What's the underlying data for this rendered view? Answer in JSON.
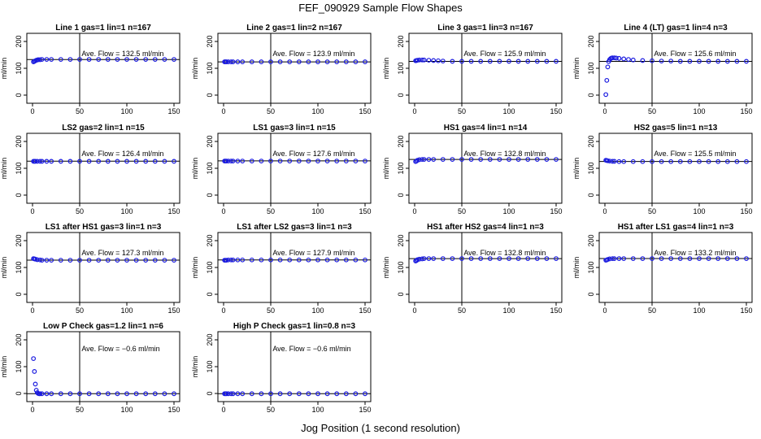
{
  "figure": {
    "title": "FEF_090929  Sample Flow Shapes",
    "xlabel": "Jog Position (1 second resolution)"
  },
  "colors": {
    "points": "#1a1adf",
    "axes": "#000000",
    "background": "#ffffff"
  },
  "chart_data": [
    {
      "type": "scatter",
      "title": "Line 1 gas=1 lin=1 n=167",
      "ylabel": "ml/min",
      "xlim": [
        0,
        150
      ],
      "ylim": [
        0,
        200
      ],
      "xticks": [
        0,
        50,
        100,
        150
      ],
      "yticks": [
        0,
        100,
        200
      ],
      "annotation": "Ave. Flow =  132.5  ml/min",
      "mean": 132.5,
      "series": [
        {
          "name": "flow",
          "x": [
            1,
            2,
            3,
            4,
            5,
            6,
            8,
            10,
            15,
            20,
            30,
            40,
            50,
            60,
            70,
            80,
            90,
            100,
            110,
            120,
            130,
            140,
            150
          ],
          "y": [
            124,
            126,
            128,
            130,
            131,
            132,
            132,
            133,
            133,
            133,
            133,
            133,
            133,
            133,
            133,
            133,
            133,
            133,
            133,
            133,
            133,
            133,
            133
          ]
        }
      ]
    },
    {
      "type": "scatter",
      "title": "Line 2 gas=1 lin=2 n=167",
      "ylabel": "ml/min",
      "xlim": [
        0,
        150
      ],
      "ylim": [
        0,
        200
      ],
      "xticks": [
        0,
        50,
        100,
        150
      ],
      "yticks": [
        0,
        100,
        200
      ],
      "annotation": "Ave. Flow =  123.9  ml/min",
      "mean": 123.9,
      "series": [
        {
          "name": "flow",
          "x": [
            1,
            2,
            3,
            5,
            8,
            10,
            15,
            20,
            30,
            40,
            50,
            60,
            70,
            80,
            90,
            100,
            110,
            120,
            130,
            140,
            150
          ],
          "y": [
            124,
            124,
            124,
            124,
            124,
            124,
            124,
            124,
            124,
            124,
            124,
            124,
            124,
            124,
            124,
            124,
            124,
            124,
            124,
            124,
            124
          ]
        }
      ]
    },
    {
      "type": "scatter",
      "title": "Line 3 gas=1 lin=3 n=167",
      "ylabel": "ml/min",
      "xlim": [
        0,
        150
      ],
      "ylim": [
        0,
        200
      ],
      "xticks": [
        0,
        50,
        100,
        150
      ],
      "yticks": [
        0,
        100,
        200
      ],
      "annotation": "Ave. Flow =  125.9  ml/min",
      "mean": 125.9,
      "series": [
        {
          "name": "flow",
          "x": [
            1,
            2,
            3,
            5,
            8,
            10,
            15,
            20,
            25,
            30,
            40,
            50,
            60,
            70,
            80,
            90,
            100,
            110,
            120,
            130,
            140,
            150
          ],
          "y": [
            128,
            129,
            130,
            131,
            131,
            131,
            130,
            129,
            128,
            127,
            126,
            126,
            126,
            126,
            126,
            126,
            126,
            126,
            126,
            126,
            126,
            126
          ]
        }
      ]
    },
    {
      "type": "scatter",
      "title": "Line 4 (LT) gas=1 lin=4 n=3",
      "ylabel": "ml/min",
      "xlim": [
        0,
        150
      ],
      "ylim": [
        0,
        200
      ],
      "xticks": [
        0,
        50,
        100,
        150
      ],
      "yticks": [
        0,
        100,
        200
      ],
      "annotation": "Ave. Flow =  125.6  ml/min",
      "mean": 125.6,
      "series": [
        {
          "name": "flow",
          "x": [
            1,
            2,
            3,
            4,
            5,
            6,
            7,
            8,
            10,
            12,
            15,
            20,
            25,
            30,
            40,
            50,
            60,
            70,
            80,
            90,
            100,
            110,
            120,
            130,
            140,
            150
          ],
          "y": [
            2,
            55,
            105,
            125,
            132,
            136,
            138,
            139,
            139,
            138,
            137,
            135,
            133,
            131,
            129,
            128,
            127,
            127,
            126,
            126,
            126,
            126,
            126,
            126,
            126,
            126
          ]
        }
      ]
    },
    {
      "type": "scatter",
      "title": "LS2 gas=2 lin=1 n=15",
      "ylabel": "ml/min",
      "xlim": [
        0,
        150
      ],
      "ylim": [
        0,
        200
      ],
      "xticks": [
        0,
        50,
        100,
        150
      ],
      "yticks": [
        0,
        100,
        200
      ],
      "annotation": "Ave. Flow =  126.4  ml/min",
      "mean": 126.4,
      "series": [
        {
          "name": "flow",
          "x": [
            1,
            2,
            3,
            5,
            8,
            10,
            15,
            20,
            30,
            40,
            50,
            60,
            70,
            80,
            90,
            100,
            110,
            120,
            130,
            140,
            150
          ],
          "y": [
            126,
            126,
            126,
            126,
            126,
            126,
            126,
            126,
            126,
            126,
            126,
            126,
            126,
            126,
            126,
            126,
            126,
            126,
            126,
            126,
            126
          ]
        }
      ]
    },
    {
      "type": "scatter",
      "title": "LS1 gas=3 lin=1 n=15",
      "ylabel": "ml/min",
      "xlim": [
        0,
        150
      ],
      "ylim": [
        0,
        200
      ],
      "xticks": [
        0,
        50,
        100,
        150
      ],
      "yticks": [
        0,
        100,
        200
      ],
      "annotation": "Ave. Flow =  127.6  ml/min",
      "mean": 127.6,
      "series": [
        {
          "name": "flow",
          "x": [
            1,
            2,
            3,
            5,
            8,
            10,
            15,
            20,
            30,
            40,
            50,
            60,
            70,
            80,
            90,
            100,
            110,
            120,
            130,
            140,
            150
          ],
          "y": [
            127,
            127,
            127,
            127,
            127,
            127,
            127,
            127,
            127,
            127,
            127,
            127,
            127,
            127,
            127,
            127,
            127,
            127,
            127,
            127,
            127
          ]
        }
      ]
    },
    {
      "type": "scatter",
      "title": "HS1 gas=4 lin=1 n=14",
      "ylabel": "ml/min",
      "xlim": [
        0,
        150
      ],
      "ylim": [
        0,
        200
      ],
      "xticks": [
        0,
        50,
        100,
        150
      ],
      "yticks": [
        0,
        100,
        200
      ],
      "annotation": "Ave. Flow =  132.8  ml/min",
      "mean": 132.8,
      "series": [
        {
          "name": "flow",
          "x": [
            1,
            2,
            3,
            5,
            8,
            10,
            15,
            20,
            30,
            40,
            50,
            60,
            70,
            80,
            90,
            100,
            110,
            120,
            130,
            140,
            150
          ],
          "y": [
            125,
            127,
            130,
            132,
            133,
            133,
            133,
            133,
            133,
            133,
            133,
            133,
            133,
            133,
            133,
            133,
            133,
            133,
            133,
            133,
            133
          ]
        }
      ]
    },
    {
      "type": "scatter",
      "title": "HS2 gas=5 lin=1 n=13",
      "ylabel": "ml/min",
      "xlim": [
        0,
        150
      ],
      "ylim": [
        0,
        200
      ],
      "xticks": [
        0,
        50,
        100,
        150
      ],
      "yticks": [
        0,
        100,
        200
      ],
      "annotation": "Ave. Flow =  125.5  ml/min",
      "mean": 125.5,
      "series": [
        {
          "name": "flow",
          "x": [
            1,
            2,
            3,
            5,
            8,
            10,
            15,
            20,
            30,
            40,
            50,
            60,
            70,
            80,
            90,
            100,
            110,
            120,
            130,
            140,
            150
          ],
          "y": [
            130,
            129,
            128,
            127,
            126,
            126,
            125,
            125,
            125,
            125,
            125,
            125,
            125,
            125,
            125,
            125,
            125,
            125,
            125,
            125,
            125
          ]
        }
      ]
    },
    {
      "type": "scatter",
      "title": "LS1 after HS1 gas=3 lin=1 n=3",
      "ylabel": "ml/min",
      "xlim": [
        0,
        150
      ],
      "ylim": [
        0,
        200
      ],
      "xticks": [
        0,
        50,
        100,
        150
      ],
      "yticks": [
        0,
        100,
        200
      ],
      "annotation": "Ave. Flow =  127.3  ml/min",
      "mean": 127.3,
      "series": [
        {
          "name": "flow",
          "x": [
            1,
            2,
            3,
            5,
            8,
            10,
            15,
            20,
            30,
            40,
            50,
            60,
            70,
            80,
            90,
            100,
            110,
            120,
            130,
            140,
            150
          ],
          "y": [
            133,
            132,
            131,
            129,
            128,
            127,
            127,
            127,
            127,
            127,
            127,
            127,
            127,
            127,
            127,
            127,
            127,
            127,
            127,
            127,
            127
          ]
        }
      ]
    },
    {
      "type": "scatter",
      "title": "LS1 after LS2 gas=3 lin=1 n=3",
      "ylabel": "ml/min",
      "xlim": [
        0,
        150
      ],
      "ylim": [
        0,
        200
      ],
      "xticks": [
        0,
        50,
        100,
        150
      ],
      "yticks": [
        0,
        100,
        200
      ],
      "annotation": "Ave. Flow =  127.9  ml/min",
      "mean": 127.9,
      "series": [
        {
          "name": "flow",
          "x": [
            1,
            2,
            3,
            5,
            8,
            10,
            15,
            20,
            30,
            40,
            50,
            60,
            70,
            80,
            90,
            100,
            110,
            120,
            130,
            140,
            150
          ],
          "y": [
            127,
            127,
            127,
            128,
            128,
            128,
            128,
            128,
            128,
            128,
            128,
            128,
            128,
            128,
            128,
            128,
            128,
            128,
            128,
            128,
            128
          ]
        }
      ]
    },
    {
      "type": "scatter",
      "title": "HS1 after HS2 gas=4 lin=1 n=3",
      "ylabel": "ml/min",
      "xlim": [
        0,
        150
      ],
      "ylim": [
        0,
        200
      ],
      "xticks": [
        0,
        50,
        100,
        150
      ],
      "yticks": [
        0,
        100,
        200
      ],
      "annotation": "Ave. Flow =  132.8  ml/min",
      "mean": 132.8,
      "series": [
        {
          "name": "flow",
          "x": [
            1,
            2,
            3,
            5,
            8,
            10,
            15,
            20,
            30,
            40,
            50,
            60,
            70,
            80,
            90,
            100,
            110,
            120,
            130,
            140,
            150
          ],
          "y": [
            124,
            126,
            129,
            131,
            132,
            133,
            133,
            133,
            133,
            133,
            133,
            133,
            133,
            133,
            133,
            133,
            133,
            133,
            133,
            133,
            133
          ]
        }
      ]
    },
    {
      "type": "scatter",
      "title": "HS1 after LS1 gas=4 lin=1 n=3",
      "ylabel": "ml/min",
      "xlim": [
        0,
        150
      ],
      "ylim": [
        0,
        200
      ],
      "xticks": [
        0,
        50,
        100,
        150
      ],
      "yticks": [
        0,
        100,
        200
      ],
      "annotation": "Ave. Flow =  133.2  ml/min",
      "mean": 133.2,
      "series": [
        {
          "name": "flow",
          "x": [
            1,
            2,
            3,
            5,
            8,
            10,
            15,
            20,
            30,
            40,
            50,
            60,
            70,
            80,
            90,
            100,
            110,
            120,
            130,
            140,
            150
          ],
          "y": [
            127,
            128,
            130,
            132,
            133,
            133,
            133,
            133,
            133,
            133,
            133,
            133,
            133,
            133,
            133,
            133,
            133,
            133,
            133,
            133,
            133
          ]
        }
      ]
    },
    {
      "type": "scatter",
      "title": "Low P Check gas=1.2 lin=1 n=6",
      "ylabel": "ml/min",
      "xlim": [
        0,
        150
      ],
      "ylim": [
        0,
        200
      ],
      "xticks": [
        0,
        50,
        100,
        150
      ],
      "yticks": [
        0,
        100,
        200
      ],
      "annotation": "Ave. Flow =  −0.6  ml/min",
      "mean": -0.6,
      "series": [
        {
          "name": "flow",
          "x": [
            1,
            2,
            3,
            4,
            5,
            6,
            7,
            8,
            10,
            15,
            20,
            30,
            40,
            50,
            60,
            70,
            80,
            90,
            100,
            110,
            120,
            130,
            140,
            150
          ],
          "y": [
            130,
            82,
            35,
            12,
            3,
            0,
            -1,
            -1,
            -1,
            -1,
            -1,
            -1,
            -1,
            -1,
            -1,
            -1,
            -1,
            -1,
            -1,
            -1,
            -1,
            -1,
            -1,
            -1
          ]
        }
      ]
    },
    {
      "type": "scatter",
      "title": "High P Check gas=1 lin=0.8 n=3",
      "ylabel": "ml/min",
      "xlim": [
        0,
        150
      ],
      "ylim": [
        0,
        200
      ],
      "xticks": [
        0,
        50,
        100,
        150
      ],
      "yticks": [
        0,
        100,
        200
      ],
      "annotation": "Ave. Flow =  −0.6  ml/min",
      "mean": -0.6,
      "series": [
        {
          "name": "flow",
          "x": [
            1,
            2,
            3,
            5,
            8,
            10,
            15,
            20,
            30,
            40,
            50,
            60,
            70,
            80,
            90,
            100,
            110,
            120,
            130,
            140,
            150
          ],
          "y": [
            -1,
            -1,
            -1,
            -1,
            -1,
            -1,
            -1,
            -1,
            -1,
            -1,
            -1,
            -1,
            -1,
            -1,
            -1,
            -1,
            -1,
            -1,
            -1,
            -1,
            -1
          ]
        }
      ]
    }
  ]
}
